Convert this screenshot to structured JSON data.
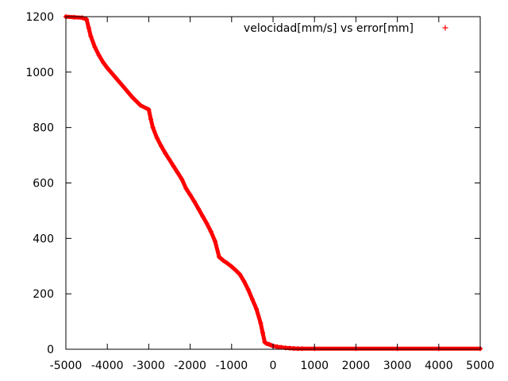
{
  "chart_data": {
    "type": "scatter",
    "title": "",
    "xlabel": "",
    "ylabel": "",
    "xlim": [
      -5000,
      5000
    ],
    "ylim": [
      0,
      1200
    ],
    "grid": false,
    "legend_position": "top-right",
    "x_ticks": [
      -5000,
      -4000,
      -3000,
      -2000,
      -1000,
      0,
      1000,
      2000,
      3000,
      4000,
      5000
    ],
    "y_ticks": [
      0,
      200,
      400,
      600,
      800,
      1000,
      1200
    ],
    "x_tick_labels": [
      "-5000",
      "-4000",
      "-3000",
      "-2000",
      "-1000",
      "0",
      "1000",
      "2000",
      "3000",
      "4000",
      "5000"
    ],
    "y_tick_labels": [
      "0",
      "200",
      "400",
      "600",
      "800",
      "1000",
      "1200"
    ],
    "series": [
      {
        "name": "velocidad[mm/s] vs error[mm]",
        "color": "#ff0000",
        "marker": "+",
        "x": [
          -5000,
          -4800,
          -4600,
          -4500,
          -4450,
          -4400,
          -4300,
          -4200,
          -4100,
          -4000,
          -3800,
          -3600,
          -3400,
          -3200,
          -3000,
          -2950,
          -2900,
          -2800,
          -2700,
          -2600,
          -2500,
          -2400,
          -2300,
          -2200,
          -2100,
          -2000,
          -1900,
          -1800,
          -1700,
          -1600,
          -1500,
          -1400,
          -1300,
          -1200,
          -1100,
          -1000,
          -900,
          -800,
          -700,
          -600,
          -500,
          -400,
          -300,
          -250,
          -200,
          -150,
          -100,
          -50,
          0,
          100,
          200,
          300,
          400,
          500,
          600,
          700,
          1000,
          2000,
          3000,
          4000,
          5000
        ],
        "y": [
          1200,
          1198,
          1196,
          1190,
          1160,
          1130,
          1090,
          1060,
          1035,
          1015,
          980,
          945,
          910,
          880,
          865,
          830,
          800,
          762,
          733,
          707,
          684,
          660,
          637,
          613,
          580,
          557,
          533,
          507,
          480,
          454,
          425,
          390,
          333,
          320,
          310,
          298,
          285,
          270,
          245,
          215,
          180,
          145,
          95,
          60,
          25,
          20,
          18,
          15,
          12,
          9,
          7,
          5,
          4,
          3,
          2,
          2,
          2,
          2,
          2,
          2,
          2
        ]
      }
    ]
  }
}
